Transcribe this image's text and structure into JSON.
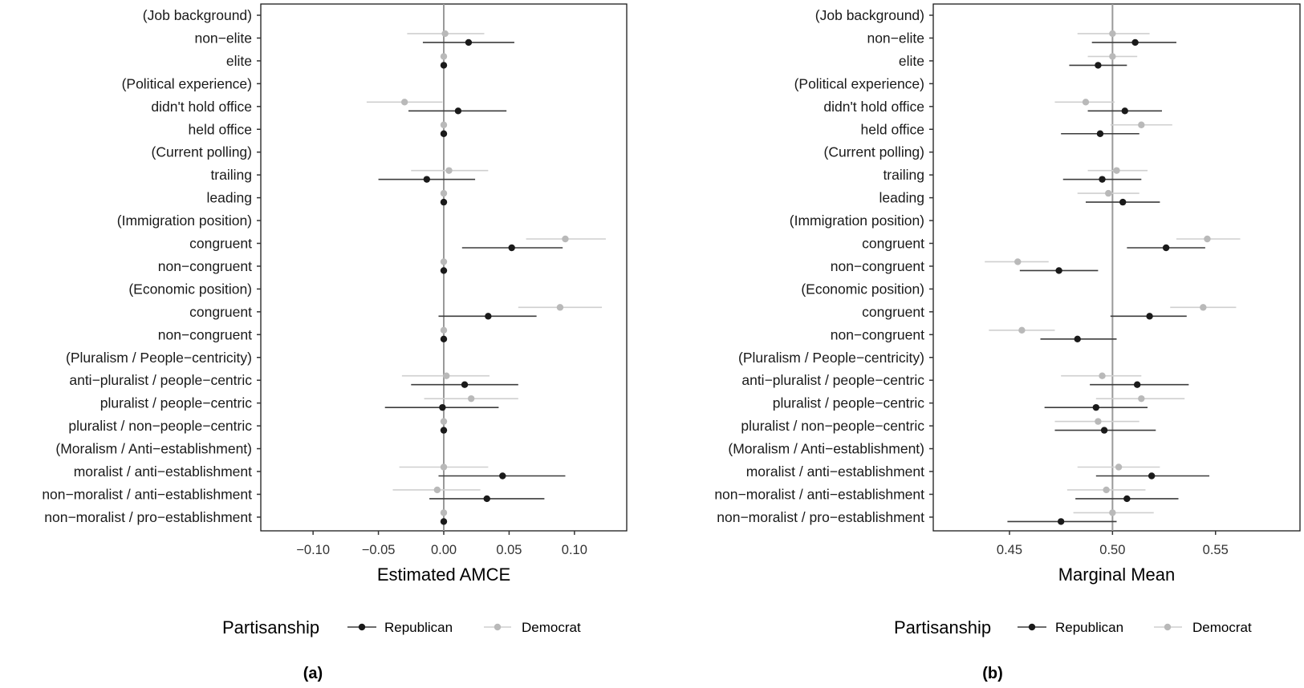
{
  "chart_data": [
    {
      "type": "scatter",
      "subtype": "coefficient-plot",
      "panel_label": "(a)",
      "xlabel": "Estimated AMCE",
      "ylabel": "",
      "xlim": [
        -0.14,
        0.14
      ],
      "x_ticks": [
        -0.1,
        -0.05,
        0.0,
        0.05,
        0.1
      ],
      "x_tick_labels": [
        "−0.10",
        "−0.05",
        "0.00",
        "0.05",
        "0.10"
      ],
      "reference_line": 0,
      "grid": false,
      "legend": {
        "title": "Partisanship",
        "placement": "bottom",
        "entries": [
          "Republican",
          "Democrat"
        ]
      },
      "categories": [
        "(Job background)",
        "non−elite",
        "elite",
        "(Political experience)",
        "didn't hold office",
        "held office",
        "(Current polling)",
        "trailing",
        "leading",
        "(Immigration position)",
        "congruent ",
        "non−congruent ",
        "(Economic position)",
        "congruent",
        "non−congruent",
        "(Pluralism / People−centricity)",
        "anti−pluralist / people−centric",
        "pluralist / people−centric",
        "pluralist / non−people−centric",
        "(Moralism / Anti−establishment)",
        "moralist / anti−establishment",
        "non−moralist / anti−establishment",
        "non−moralist / pro−establishment"
      ],
      "series": [
        {
          "name": "Republican",
          "color": "#1a1a1a",
          "line_color": "#3c3c3c",
          "estimate": [
            null,
            0.019,
            0,
            null,
            0.011,
            0,
            null,
            -0.013,
            0,
            null,
            0.052,
            0,
            null,
            0.034,
            0,
            null,
            0.016,
            -0.001,
            0,
            null,
            0.045,
            0.033,
            0
          ],
          "lower": [
            null,
            -0.016,
            null,
            null,
            -0.027,
            null,
            null,
            -0.05,
            null,
            null,
            0.014,
            null,
            null,
            -0.004,
            null,
            null,
            -0.025,
            -0.045,
            null,
            null,
            -0.004,
            -0.011,
            null
          ],
          "upper": [
            null,
            0.054,
            null,
            null,
            0.048,
            null,
            null,
            0.024,
            null,
            null,
            0.091,
            null,
            null,
            0.071,
            null,
            null,
            0.057,
            0.042,
            null,
            null,
            0.093,
            0.077,
            null
          ]
        },
        {
          "name": "Democrat",
          "color": "#b9b9b9",
          "line_color": "#cfcfcf",
          "estimate": [
            null,
            0.001,
            0,
            null,
            -0.03,
            0,
            null,
            0.004,
            0,
            null,
            0.093,
            0,
            null,
            0.089,
            0,
            null,
            0.002,
            0.021,
            0,
            null,
            0.0,
            -0.005,
            0
          ],
          "lower": [
            null,
            -0.028,
            null,
            null,
            -0.059,
            null,
            null,
            -0.025,
            null,
            null,
            0.063,
            null,
            null,
            0.057,
            null,
            null,
            -0.032,
            -0.015,
            null,
            null,
            -0.034,
            -0.039,
            null
          ],
          "upper": [
            null,
            0.031,
            null,
            null,
            -0.001,
            null,
            null,
            0.034,
            null,
            null,
            0.124,
            null,
            null,
            0.121,
            null,
            null,
            0.035,
            0.057,
            null,
            null,
            0.034,
            0.028,
            null
          ]
        }
      ]
    },
    {
      "type": "scatter",
      "subtype": "coefficient-plot",
      "panel_label": "(b)",
      "xlabel": "Marginal Mean",
      "ylabel": "",
      "xlim": [
        0.413,
        0.591
      ],
      "x_ticks": [
        0.45,
        0.5,
        0.55
      ],
      "x_tick_labels": [
        "0.45",
        "0.50",
        "0.55"
      ],
      "reference_line": 0.5,
      "grid": false,
      "legend": {
        "title": "Partisanship",
        "placement": "bottom",
        "entries": [
          "Republican",
          "Democrat"
        ]
      },
      "categories": [
        "(Job background)",
        "non−elite",
        "elite",
        "(Political experience)",
        "didn't hold office",
        "held office",
        "(Current polling)",
        "trailing",
        "leading",
        "(Immigration position)",
        "congruent ",
        "non−congruent ",
        "(Economic position)",
        "congruent",
        "non−congruent",
        "(Pluralism / People−centricity)",
        "anti−pluralist / people−centric",
        "pluralist / people−centric",
        "pluralist / non−people−centric",
        "(Moralism / Anti−establishment)",
        "moralist / anti−establishment",
        "non−moralist / anti−establishment",
        "non−moralist / pro−establishment"
      ],
      "series": [
        {
          "name": "Republican",
          "color": "#1a1a1a",
          "line_color": "#3c3c3c",
          "estimate": [
            null,
            0.511,
            0.493,
            null,
            0.506,
            0.494,
            null,
            0.495,
            0.505,
            null,
            0.526,
            0.474,
            null,
            0.518,
            0.483,
            null,
            0.512,
            0.492,
            0.496,
            null,
            0.519,
            0.507,
            0.475
          ],
          "lower": [
            null,
            0.49,
            0.479,
            null,
            0.488,
            0.475,
            null,
            0.476,
            0.487,
            null,
            0.507,
            0.455,
            null,
            0.499,
            0.465,
            null,
            0.489,
            0.467,
            0.472,
            null,
            0.492,
            0.482,
            0.449
          ],
          "upper": [
            null,
            0.531,
            0.507,
            null,
            0.524,
            0.513,
            null,
            0.514,
            0.523,
            null,
            0.545,
            0.493,
            null,
            0.536,
            0.502,
            null,
            0.537,
            0.517,
            0.521,
            null,
            0.547,
            0.532,
            0.502
          ]
        },
        {
          "name": "Democrat",
          "color": "#b9b9b9",
          "line_color": "#cfcfcf",
          "estimate": [
            null,
            0.5,
            0.5,
            null,
            0.487,
            0.514,
            null,
            0.502,
            0.498,
            null,
            0.546,
            0.454,
            null,
            0.544,
            0.456,
            null,
            0.495,
            0.514,
            0.493,
            null,
            0.503,
            0.497,
            0.5
          ],
          "lower": [
            null,
            0.483,
            0.488,
            null,
            0.472,
            0.499,
            null,
            0.488,
            0.483,
            null,
            0.531,
            0.438,
            null,
            0.528,
            0.44,
            null,
            0.475,
            0.492,
            0.472,
            null,
            0.483,
            0.478,
            0.481
          ],
          "upper": [
            null,
            0.518,
            0.512,
            null,
            0.501,
            0.529,
            null,
            0.517,
            0.513,
            null,
            0.562,
            0.469,
            null,
            0.56,
            0.472,
            null,
            0.514,
            0.535,
            0.513,
            null,
            0.523,
            0.516,
            0.52
          ]
        }
      ]
    }
  ]
}
